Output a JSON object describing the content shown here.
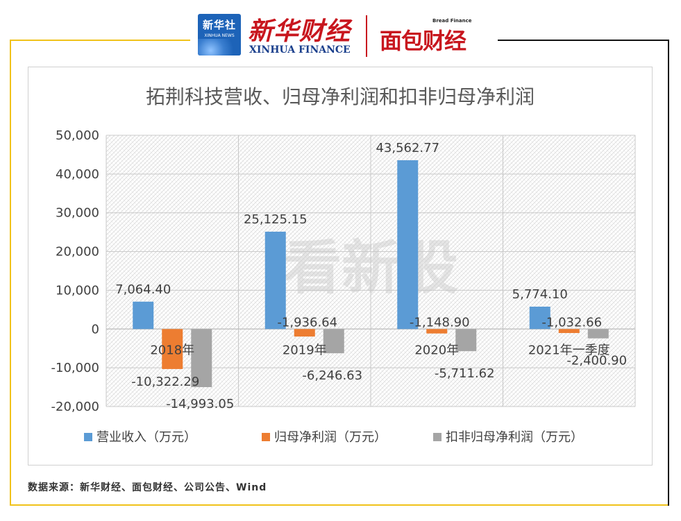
{
  "header": {
    "xinhua_badge": "新华社",
    "xinhua_badge_en": "XINHUA NEWS",
    "xinhua_finance_cn": "新华财经",
    "xinhua_finance_en": "XINHUA FINANCE",
    "bread_finance_en": "Bread Finance",
    "bread_finance_cn": "面包财经"
  },
  "watermark": "看新股",
  "source_note": "数据来源：新华财经、面包财经、公司公告、Wind",
  "colors": {
    "series_blue": "#5b9bd5",
    "series_orange": "#ed7d31",
    "series_gray": "#a5a5a5",
    "frame_gold": "#f0c21a",
    "brand_red": "#c8161e"
  },
  "chart_data": {
    "type": "bar",
    "title": "拓荆科技营收、归母净利润和扣非归母净利润",
    "categories": [
      "2018年",
      "2019年",
      "2020年",
      "2021年一季度"
    ],
    "series": [
      {
        "name": "营业收入（万元）",
        "values": [
          7064.4,
          25125.15,
          43562.77,
          5774.1
        ],
        "labels": [
          "7,064.40",
          "25,125.15",
          "43,562.77",
          "5,774.10"
        ]
      },
      {
        "name": "归母净利润（万元）",
        "values": [
          -10322.29,
          -1936.64,
          -1148.9,
          -1032.66
        ],
        "labels": [
          "-10,322.29",
          "-1,936.64",
          "-1,148.90",
          "-1,032.66"
        ]
      },
      {
        "name": "扣非归母净利润（万元）",
        "values": [
          -14993.05,
          -6246.63,
          -5711.62,
          -2400.9
        ],
        "labels": [
          "-14,993.05",
          "-6,246.63",
          "-5,711.62",
          "-2,400.90"
        ]
      }
    ],
    "ylim": [
      -20000,
      50000
    ],
    "yticks": [
      "50,000",
      "40,000",
      "30,000",
      "20,000",
      "10,000",
      "0",
      "-10,000",
      "-20,000"
    ],
    "ytick_values": [
      50000,
      40000,
      30000,
      20000,
      10000,
      0,
      -10000,
      -20000
    ],
    "grid": true,
    "legend": "bottom"
  }
}
